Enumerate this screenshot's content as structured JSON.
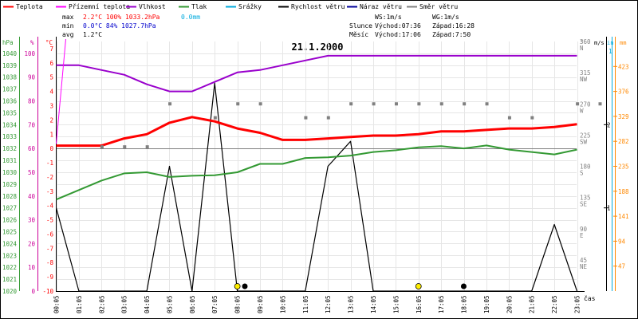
{
  "colors": {
    "temperature": "#ff0000",
    "feels_like": "#ff00ff",
    "humidity": "#9900cc",
    "pressure": "#339933",
    "precipitation": "#00aadd",
    "wind_speed": "#000000",
    "wind_gust": "#000099",
    "wind_direction": "#808080",
    "pressure_axis": "#339933",
    "humidity_axis": "#cc0099",
    "temperature_axis": "#ff0000",
    "precip_axis": "#ff8800",
    "sun_icon": "#ffee00"
  },
  "legend": [
    {
      "key": "temperature",
      "label": "Teplota"
    },
    {
      "key": "feels_like",
      "label": "Přízemní teplota"
    },
    {
      "key": "humidity",
      "label": "Vlhkost"
    },
    {
      "key": "pressure",
      "label": "Tlak"
    },
    {
      "key": "precipitation",
      "label": "Srážky"
    },
    {
      "key": "wind_speed",
      "label": "Rychlost větru"
    },
    {
      "key": "wind_gust",
      "label": "Náraz větru"
    },
    {
      "key": "wind_direction",
      "label": "Směr větru"
    }
  ],
  "stats": {
    "max_label": "max",
    "min_label": "min",
    "avg_label": "avg",
    "max_values": "2.2°C 100%  1033.2hPa",
    "min_values": "0.0°C  84%  1027.7hPa",
    "avg_values": "1.2°C",
    "max_precip": "0.0mm"
  },
  "info": {
    "ws": "WS:1m/s",
    "wg": "WG:1m/s",
    "sun_label": "Slunce",
    "sunrise": "Východ:07:36",
    "sunset": "Západ:16:28",
    "moon_label": "Měsíc",
    "moonrise": "Východ:17:06",
    "moonset": "Západ:7:50"
  },
  "chart_data": {
    "type": "line",
    "title": "21.1.2000",
    "x_label": "čas",
    "x": [
      "00:05",
      "01:05",
      "02:05",
      "03:05",
      "04:05",
      "05:05",
      "06:05",
      "07:05",
      "08:05",
      "09:05",
      "10:05",
      "11:05",
      "12:05",
      "13:05",
      "14:05",
      "15:05",
      "16:05",
      "17:05",
      "18:05",
      "19:05",
      "20:05",
      "21:05",
      "22:05",
      "23:05"
    ],
    "axes": {
      "pressure": {
        "unit": "hPa",
        "range": [
          1020,
          1041
        ],
        "ticks": [
          1020,
          1021,
          1022,
          1023,
          1024,
          1025,
          1026,
          1027,
          1028,
          1029,
          1030,
          1031,
          1032,
          1033,
          1034,
          1035,
          1036,
          1037,
          1038,
          1039,
          1040
        ]
      },
      "humidity": {
        "unit": "%",
        "range": [
          0,
          105
        ],
        "ticks": [
          0,
          10,
          20,
          30,
          40,
          50,
          60,
          70,
          80,
          90,
          100
        ]
      },
      "temperature": {
        "unit": "°C",
        "range": [
          -10,
          7.5
        ],
        "ticks": [
          -10,
          -9,
          -8,
          -7,
          -6,
          -5,
          -4,
          -3,
          -2,
          -1,
          0,
          1,
          2,
          3,
          4,
          5,
          6,
          7
        ]
      },
      "wind_direction": {
        "unit": "°",
        "range": [
          0,
          360
        ],
        "ticks": [
          {
            "v": 45,
            "l": "NE"
          },
          {
            "v": 90,
            "l": "E"
          },
          {
            "v": 135,
            "l": "SE"
          },
          {
            "v": 180,
            "l": "S"
          },
          {
            "v": 225,
            "l": "SW"
          },
          {
            "v": 270,
            "l": "W"
          },
          {
            "v": 315,
            "l": "NW"
          },
          {
            "v": 360,
            "l": "N"
          }
        ]
      },
      "wind_speed": {
        "unit": "m/s",
        "range": [
          0,
          3
        ],
        "ticks": [
          1,
          2
        ]
      },
      "precip_in": {
        "unit": "in",
        "range": [
          0,
          1
        ],
        "ticks": [
          1
        ]
      },
      "precip_mm": {
        "unit": "mm",
        "range": [
          0,
          470
        ],
        "ticks": [
          47,
          94,
          141,
          188,
          235,
          282,
          329,
          376,
          423
        ]
      }
    },
    "series": [
      {
        "name": "Teplota",
        "key": "temperature",
        "axis": "temperature",
        "values": [
          0.2,
          0.2,
          0.2,
          0.7,
          1.0,
          1.8,
          2.2,
          1.9,
          1.4,
          1.1,
          0.6,
          0.6,
          0.7,
          0.8,
          0.9,
          0.9,
          1.0,
          1.2,
          1.2,
          1.3,
          1.4,
          1.4,
          1.5,
          1.7
        ]
      },
      {
        "name": "Vlhkost",
        "key": "humidity",
        "axis": "humidity",
        "values": [
          95,
          95,
          93,
          91,
          87,
          84,
          84,
          88,
          92,
          93,
          95,
          97,
          99,
          99,
          99,
          99,
          99,
          99,
          99,
          99,
          99,
          99,
          99,
          99
        ]
      },
      {
        "name": "Tlak",
        "key": "pressure",
        "axis": "pressure",
        "values": [
          1027.7,
          1028.5,
          1029.3,
          1029.9,
          1030.0,
          1029.6,
          1029.7,
          1029.75,
          1030.0,
          1030.7,
          1030.7,
          1031.2,
          1031.25,
          1031.4,
          1031.7,
          1031.85,
          1032.1,
          1032.2,
          1032.0,
          1032.25,
          1031.9,
          1031.7,
          1031.5,
          1031.9
        ]
      },
      {
        "name": "Rychlost větru",
        "key": "wind_speed",
        "axis": "wind_speed",
        "values": [
          1,
          0,
          0,
          0,
          0,
          1.5,
          0,
          2.5,
          0,
          0,
          0,
          0,
          1.5,
          1.8,
          0,
          0,
          0,
          0,
          0,
          0,
          0,
          0,
          0.8,
          0
        ]
      },
      {
        "name": "Směr větru",
        "key": "wind_direction",
        "axis": "wind_direction",
        "values": [
          null,
          208,
          208,
          208,
          270,
          null,
          250,
          270,
          270,
          null,
          250,
          250,
          270,
          270,
          270,
          270,
          270,
          270,
          270,
          250,
          250,
          null,
          270,
          270
        ]
      },
      {
        "name": "Přízemní teplota",
        "key": "feels_like",
        "axis": "humidity",
        "values": [
          62,
          null,
          null,
          null,
          null,
          null,
          null,
          null,
          null,
          null,
          null,
          null,
          null,
          null,
          null,
          null,
          null,
          null,
          null,
          null,
          null,
          null,
          null,
          null
        ],
        "spike_to": 105
      }
    ],
    "icons": [
      {
        "type": "sun",
        "x": "08:05"
      },
      {
        "type": "moon",
        "x": "08:10"
      },
      {
        "type": "sun",
        "x": "16:05"
      },
      {
        "type": "moon",
        "x": "17:50"
      }
    ],
    "grid": true,
    "legend_position": "top-left"
  }
}
